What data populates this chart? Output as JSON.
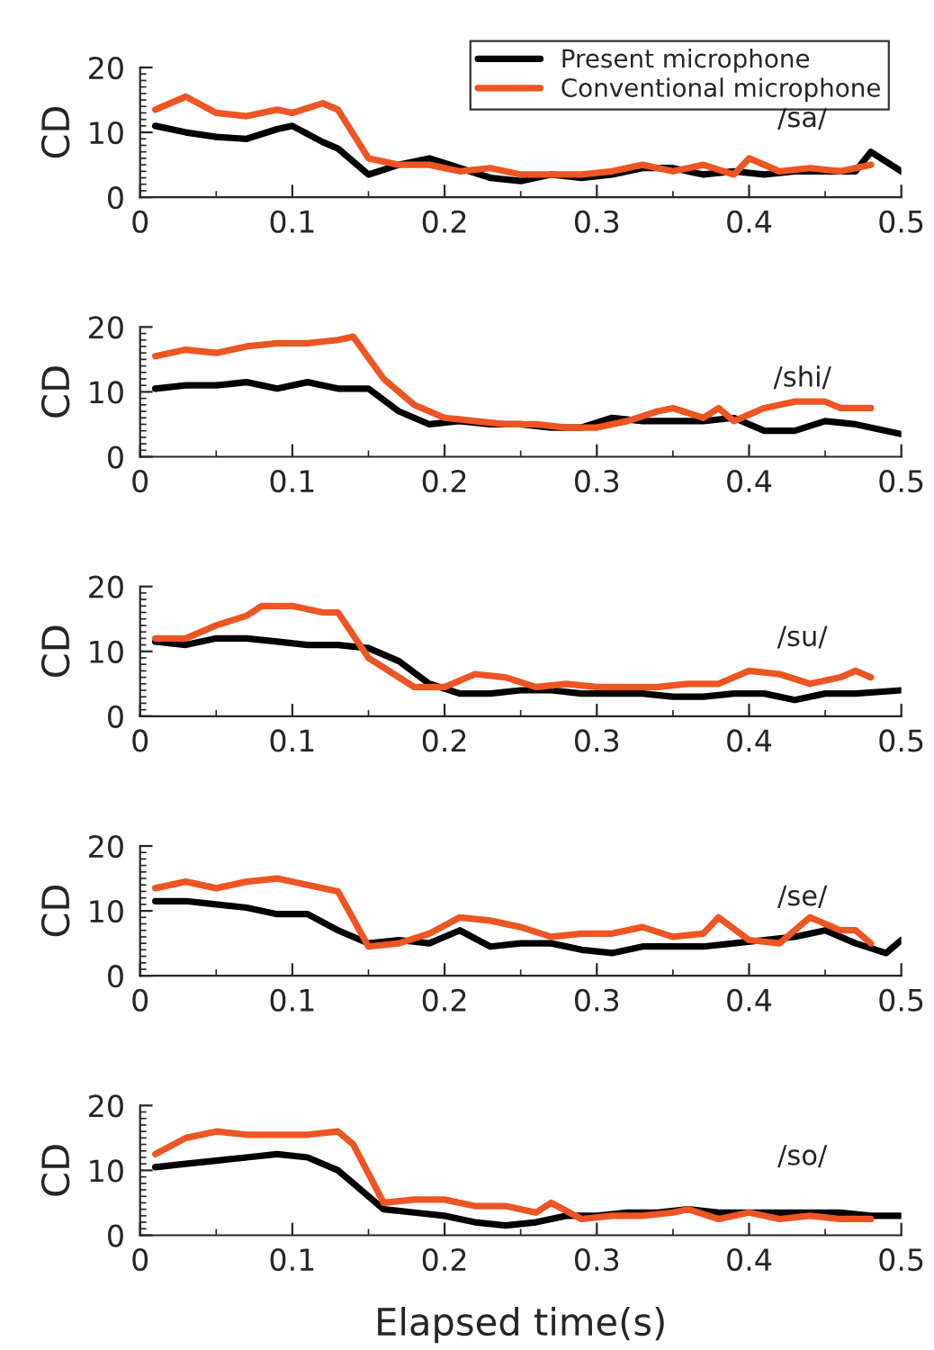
{
  "chart_data": [
    {
      "type": "line",
      "ylabel": "CD",
      "annotations": [
        "/sa/"
      ],
      "xlim": [
        0,
        0.5
      ],
      "xticks": [
        0,
        0.1,
        0.2,
        0.3,
        0.4,
        0.5
      ],
      "ylim": [
        0,
        20
      ],
      "yticks": [
        0,
        10,
        20
      ],
      "legend": "top right",
      "series": [
        {
          "name": "Present microphone",
          "color": "#000000",
          "x": [
            0.01,
            0.03,
            0.05,
            0.07,
            0.09,
            0.1,
            0.12,
            0.13,
            0.15,
            0.17,
            0.19,
            0.21,
            0.23,
            0.25,
            0.27,
            0.29,
            0.31,
            0.33,
            0.35,
            0.37,
            0.39,
            0.41,
            0.43,
            0.45,
            0.47,
            0.48,
            0.5
          ],
          "values": [
            11,
            10,
            9.3,
            9,
            10.5,
            11,
            8.5,
            7.5,
            3.5,
            5,
            6,
            4.5,
            3,
            2.5,
            3.5,
            3,
            3.5,
            4.5,
            4.5,
            3.5,
            4,
            3.5,
            4,
            4,
            4,
            7,
            4
          ]
        },
        {
          "name": "Conventional microphone",
          "color": "#ee5522",
          "x": [
            0.01,
            0.03,
            0.05,
            0.07,
            0.09,
            0.1,
            0.12,
            0.13,
            0.15,
            0.17,
            0.19,
            0.21,
            0.23,
            0.25,
            0.27,
            0.29,
            0.31,
            0.33,
            0.35,
            0.37,
            0.39,
            0.4,
            0.42,
            0.44,
            0.46,
            0.48
          ],
          "values": [
            13.5,
            15.5,
            13,
            12.5,
            13.5,
            13,
            14.5,
            13.5,
            6,
            5,
            5,
            4,
            4.5,
            3.5,
            3.5,
            3.5,
            4,
            5,
            4,
            5,
            3.5,
            6,
            4,
            4.5,
            4,
            5
          ]
        }
      ]
    },
    {
      "type": "line",
      "ylabel": "CD",
      "annotations": [
        "/shi/"
      ],
      "xlim": [
        0,
        0.5
      ],
      "xticks": [
        0,
        0.1,
        0.2,
        0.3,
        0.4,
        0.5
      ],
      "ylim": [
        0,
        20
      ],
      "yticks": [
        0,
        10,
        20
      ],
      "series": [
        {
          "color": "#000000",
          "x": [
            0.01,
            0.03,
            0.05,
            0.07,
            0.09,
            0.11,
            0.13,
            0.15,
            0.17,
            0.19,
            0.21,
            0.23,
            0.25,
            0.27,
            0.29,
            0.31,
            0.33,
            0.35,
            0.37,
            0.39,
            0.41,
            0.43,
            0.45,
            0.47,
            0.5
          ],
          "values": [
            10.5,
            11,
            11,
            11.5,
            10.5,
            11.5,
            10.5,
            10.5,
            7,
            5,
            5.5,
            5,
            5,
            4.5,
            4.5,
            6,
            5.5,
            5.5,
            5.5,
            6,
            4,
            4,
            5.5,
            5,
            3.5
          ]
        },
        {
          "color": "#ee5522",
          "x": [
            0.01,
            0.03,
            0.05,
            0.07,
            0.09,
            0.11,
            0.13,
            0.14,
            0.16,
            0.18,
            0.2,
            0.22,
            0.24,
            0.26,
            0.28,
            0.3,
            0.32,
            0.34,
            0.35,
            0.37,
            0.38,
            0.39,
            0.41,
            0.43,
            0.45,
            0.46,
            0.48
          ],
          "values": [
            15.5,
            16.5,
            16,
            17,
            17.5,
            17.5,
            18,
            18.5,
            12,
            8,
            6,
            5.5,
            5,
            5,
            4.5,
            4.5,
            5.5,
            7,
            7.5,
            6,
            7.5,
            5.5,
            7.5,
            8.5,
            8.5,
            7.5,
            7.5
          ]
        }
      ]
    },
    {
      "type": "line",
      "ylabel": "CD",
      "annotations": [
        "/su/"
      ],
      "xlim": [
        0,
        0.5
      ],
      "xticks": [
        0,
        0.1,
        0.2,
        0.3,
        0.4,
        0.5
      ],
      "ylim": [
        0,
        20
      ],
      "yticks": [
        0,
        10,
        20
      ],
      "series": [
        {
          "color": "#000000",
          "x": [
            0.01,
            0.03,
            0.05,
            0.07,
            0.09,
            0.11,
            0.13,
            0.15,
            0.17,
            0.19,
            0.21,
            0.23,
            0.25,
            0.27,
            0.29,
            0.31,
            0.33,
            0.35,
            0.37,
            0.39,
            0.41,
            0.43,
            0.45,
            0.47,
            0.5
          ],
          "values": [
            11.5,
            11,
            12,
            12,
            11.5,
            11,
            11,
            10.5,
            8.5,
            5,
            3.5,
            3.5,
            4,
            4,
            3.5,
            3.5,
            3.5,
            3,
            3,
            3.5,
            3.5,
            2.5,
            3.5,
            3.5,
            4
          ]
        },
        {
          "color": "#ee5522",
          "x": [
            0.01,
            0.03,
            0.05,
            0.07,
            0.08,
            0.1,
            0.12,
            0.13,
            0.15,
            0.17,
            0.18,
            0.2,
            0.22,
            0.24,
            0.26,
            0.28,
            0.3,
            0.32,
            0.34,
            0.36,
            0.38,
            0.4,
            0.42,
            0.44,
            0.46,
            0.47,
            0.48
          ],
          "values": [
            12,
            12,
            14,
            15.5,
            17,
            17,
            16,
            16,
            9,
            6,
            4.5,
            4.5,
            6.5,
            6,
            4.5,
            5,
            4.5,
            4.5,
            4.5,
            5,
            5,
            7,
            6.5,
            5,
            6,
            7,
            6
          ]
        }
      ]
    },
    {
      "type": "line",
      "ylabel": "CD",
      "annotations": [
        "/se/"
      ],
      "xlim": [
        0,
        0.5
      ],
      "xticks": [
        0,
        0.1,
        0.2,
        0.3,
        0.4,
        0.5
      ],
      "ylim": [
        0,
        20
      ],
      "yticks": [
        0,
        10,
        20
      ],
      "series": [
        {
          "color": "#000000",
          "x": [
            0.01,
            0.03,
            0.05,
            0.07,
            0.09,
            0.11,
            0.13,
            0.15,
            0.17,
            0.19,
            0.21,
            0.23,
            0.25,
            0.27,
            0.29,
            0.31,
            0.33,
            0.35,
            0.37,
            0.39,
            0.41,
            0.43,
            0.45,
            0.47,
            0.49,
            0.5
          ],
          "values": [
            11.5,
            11.5,
            11,
            10.5,
            9.5,
            9.5,
            7,
            5,
            5.5,
            5,
            7,
            4.5,
            5,
            5,
            4,
            3.5,
            4.5,
            4.5,
            4.5,
            5,
            5.5,
            6,
            7,
            5,
            3.5,
            5.5
          ]
        },
        {
          "color": "#ee5522",
          "x": [
            0.01,
            0.03,
            0.05,
            0.07,
            0.09,
            0.11,
            0.13,
            0.15,
            0.17,
            0.19,
            0.21,
            0.23,
            0.25,
            0.27,
            0.29,
            0.31,
            0.33,
            0.35,
            0.37,
            0.38,
            0.4,
            0.42,
            0.44,
            0.46,
            0.47,
            0.48
          ],
          "values": [
            13.5,
            14.5,
            13.5,
            14.5,
            15,
            14,
            13,
            4.5,
            5,
            6.5,
            9,
            8.5,
            7.5,
            6,
            6.5,
            6.5,
            7.5,
            6,
            6.5,
            9,
            5.5,
            5,
            9,
            7,
            7,
            5
          ]
        }
      ]
    },
    {
      "type": "line",
      "ylabel": "CD",
      "xlabel": "Elapsed time(s)",
      "annotations": [
        "/so/"
      ],
      "xlim": [
        0,
        0.5
      ],
      "xticks": [
        0,
        0.1,
        0.2,
        0.3,
        0.4,
        0.5
      ],
      "ylim": [
        0,
        20
      ],
      "yticks": [
        0,
        10,
        20
      ],
      "series": [
        {
          "color": "#000000",
          "x": [
            0.01,
            0.03,
            0.05,
            0.07,
            0.09,
            0.11,
            0.13,
            0.14,
            0.16,
            0.18,
            0.2,
            0.22,
            0.24,
            0.26,
            0.28,
            0.3,
            0.32,
            0.34,
            0.36,
            0.38,
            0.4,
            0.42,
            0.44,
            0.46,
            0.48,
            0.5
          ],
          "values": [
            10.5,
            11,
            11.5,
            12,
            12.5,
            12,
            10,
            8,
            4,
            3.5,
            3,
            2,
            1.5,
            2,
            3,
            3,
            3.5,
            3.5,
            4,
            3.5,
            3.5,
            3.5,
            3.5,
            3.5,
            3,
            3
          ]
        },
        {
          "color": "#ee5522",
          "x": [
            0.01,
            0.03,
            0.05,
            0.07,
            0.09,
            0.11,
            0.13,
            0.14,
            0.16,
            0.18,
            0.2,
            0.22,
            0.24,
            0.26,
            0.27,
            0.29,
            0.31,
            0.33,
            0.35,
            0.36,
            0.38,
            0.4,
            0.42,
            0.44,
            0.46,
            0.48
          ],
          "values": [
            12.5,
            15,
            16,
            15.5,
            15.5,
            15.5,
            16,
            14,
            5,
            5.5,
            5.5,
            4.5,
            4.5,
            3.5,
            5,
            2.5,
            3,
            3,
            3.5,
            4,
            2.5,
            3.5,
            2.5,
            3,
            2.5,
            2.5
          ]
        }
      ]
    }
  ]
}
